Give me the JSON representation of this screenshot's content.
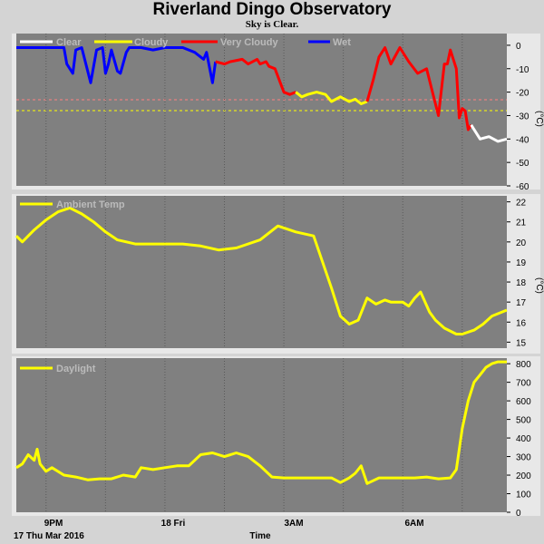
{
  "title": "Riverland Dingo Observatory",
  "subtitle": "Sky is Clear.",
  "x_axis": {
    "label": "Time",
    "date_label": "17 Thu Mar 2016",
    "ticks": [
      "9PM",
      "18 Fri",
      "3AM",
      "6AM"
    ]
  },
  "colors": {
    "plot_bg": "#808080",
    "frame": "#d4d4d4",
    "clear": "#ffffff",
    "cloudy": "#ffff00",
    "very_cloudy": "#ff0000",
    "wet": "#0000ff",
    "temp": "#ffff00",
    "daylight": "#ffff00"
  },
  "chart_data": [
    {
      "type": "line",
      "name": "sky",
      "legend": [
        "Clear",
        "Cloudy",
        "Very Cloudy",
        "Wet"
      ],
      "ylabel": "(°C)",
      "yticks": [
        "0",
        "-10",
        "-20",
        "-30",
        "-40",
        "-50",
        "-60"
      ],
      "ylim": [
        -60,
        5
      ],
      "thresholds": [
        -20,
        -25
      ],
      "xlim": [
        19.5,
        27.75
      ],
      "series": [
        {
          "x": [
            19.5,
            20.3,
            20.35,
            20.45,
            20.5,
            20.6,
            20.65,
            20.75,
            20.85,
            20.95,
            21.0,
            21.05,
            21.1,
            21.2,
            21.25,
            21.35,
            21.4,
            21.45,
            21.6,
            21.8,
            22.0,
            22.3,
            22.5,
            22.65,
            22.7,
            22.8,
            22.85
          ],
          "y": [
            -1,
            -1,
            -8,
            -12,
            -2,
            -1,
            -6,
            -16,
            -2,
            -1,
            -12,
            -8,
            -2,
            -11,
            -12,
            -3,
            -1,
            -1,
            -1,
            -2,
            -1,
            -1,
            -3,
            -6,
            -3,
            -16,
            -7
          ],
          "cat": "wet"
        },
        {
          "x": [
            22.85,
            23.0,
            23.1,
            23.3,
            23.4,
            23.55,
            23.6,
            23.7,
            23.75,
            23.85,
            24.0,
            24.1,
            24.2
          ],
          "y": [
            -7,
            -8,
            -7,
            -6,
            -8,
            -6,
            -8,
            -7,
            -9,
            -10,
            -20,
            -21,
            -20
          ],
          "cat": "very_cloudy"
        },
        {
          "x": [
            24.2,
            24.3,
            24.4,
            24.55,
            24.7,
            24.8,
            24.95,
            25.1,
            25.2,
            25.3,
            25.4
          ],
          "y": [
            -20,
            -22,
            -21,
            -20,
            -21,
            -24,
            -22,
            -24,
            -23,
            -25,
            -24
          ],
          "cat": "cloudy"
        },
        {
          "x": [
            25.4,
            25.5,
            25.6,
            25.7,
            25.8,
            25.95,
            26.1,
            26.25,
            26.4,
            26.5,
            26.6,
            26.7,
            26.75,
            26.8,
            26.85,
            26.9,
            26.95,
            27.0,
            27.05,
            27.1,
            27.15
          ],
          "y": [
            -24,
            -15,
            -5,
            -1,
            -8,
            -1,
            -7,
            -12,
            -10,
            -20,
            -30,
            -8,
            -8,
            -2,
            -6,
            -10,
            -31,
            -27,
            -28,
            -36,
            -34
          ],
          "cat": "very_cloudy"
        },
        {
          "x": [
            27.15,
            27.3,
            27.45,
            27.6,
            27.75
          ],
          "y": [
            -34,
            -40,
            -39,
            -41,
            -40
          ],
          "cat": "clear"
        }
      ]
    },
    {
      "type": "line",
      "name": "temp",
      "legend": [
        "Ambient Temp"
      ],
      "ylabel": "(°C)",
      "yticks": [
        "22",
        "21",
        "20",
        "19",
        "18",
        "17",
        "16",
        "15"
      ],
      "ylim": [
        14.7,
        22.3
      ],
      "xlim": [
        19.5,
        27.75
      ],
      "series": [
        {
          "x": [
            19.5,
            19.6,
            19.8,
            20.0,
            20.2,
            20.4,
            20.6,
            20.8,
            21.0,
            21.2,
            21.5,
            21.8,
            22.0,
            22.3,
            22.6,
            22.9,
            23.2,
            23.6,
            23.9,
            24.2,
            24.5,
            24.8,
            24.95,
            25.1,
            25.25,
            25.4,
            25.5,
            25.55,
            25.7,
            25.8,
            25.9,
            26.0,
            26.1,
            26.2,
            26.3,
            26.45,
            26.55,
            26.7,
            26.9,
            27.0,
            27.2,
            27.35,
            27.5,
            27.75
          ],
          "y": [
            20.3,
            20.0,
            20.6,
            21.1,
            21.5,
            21.7,
            21.4,
            21.0,
            20.5,
            20.1,
            19.9,
            19.9,
            19.9,
            19.9,
            19.8,
            19.6,
            19.7,
            20.1,
            20.8,
            20.5,
            20.3,
            17.7,
            16.3,
            15.9,
            16.1,
            17.2,
            17.0,
            16.9,
            17.1,
            17.0,
            17.0,
            17.0,
            16.8,
            17.2,
            17.5,
            16.5,
            16.1,
            15.7,
            15.4,
            15.4,
            15.6,
            15.9,
            16.3,
            16.6
          ]
        }
      ]
    },
    {
      "type": "line",
      "name": "daylight",
      "legend": [
        "Daylight"
      ],
      "yticks": [
        "800",
        "700",
        "600",
        "500",
        "400",
        "300",
        "200",
        "100",
        "0"
      ],
      "ylim": [
        0,
        830
      ],
      "xlim": [
        19.5,
        27.75
      ],
      "series": [
        {
          "x": [
            19.5,
            19.6,
            19.7,
            19.8,
            19.85,
            19.9,
            20.0,
            20.1,
            20.3,
            20.5,
            20.7,
            20.9,
            21.1,
            21.3,
            21.5,
            21.6,
            21.8,
            22.0,
            22.2,
            22.4,
            22.6,
            22.8,
            23.0,
            23.2,
            23.4,
            23.6,
            23.8,
            24.0,
            24.2,
            24.4,
            24.6,
            24.8,
            24.95,
            25.1,
            25.2,
            25.3,
            25.4,
            25.6,
            25.8,
            26.0,
            26.2,
            26.4,
            26.6,
            26.8,
            26.9,
            27.0,
            27.1,
            27.2,
            27.3,
            27.4,
            27.5,
            27.6,
            27.75
          ],
          "y": [
            240,
            260,
            310,
            280,
            340,
            260,
            220,
            240,
            200,
            190,
            175,
            180,
            180,
            200,
            190,
            240,
            230,
            240,
            250,
            250,
            310,
            320,
            300,
            320,
            300,
            250,
            190,
            185,
            185,
            185,
            185,
            185,
            160,
            185,
            210,
            250,
            155,
            185,
            185,
            185,
            185,
            190,
            180,
            185,
            230,
            450,
            600,
            700,
            740,
            780,
            800,
            810,
            810
          ]
        }
      ]
    }
  ]
}
